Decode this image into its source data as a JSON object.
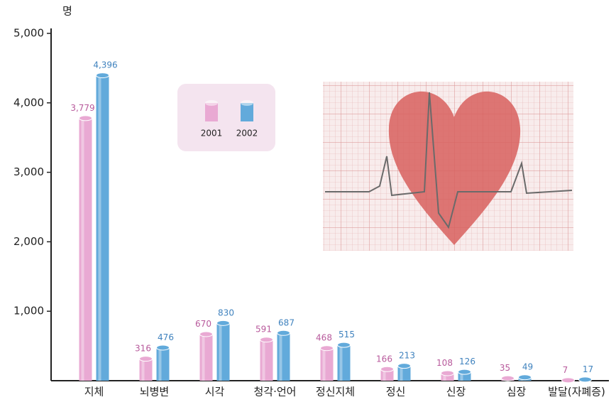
{
  "chart_data": {
    "type": "bar",
    "y_label": "명",
    "categories": [
      "지체",
      "뇌병변",
      "시각",
      "청각·언어",
      "정신지체",
      "정신",
      "신장",
      "심장",
      "발달(자폐증)"
    ],
    "series": [
      {
        "name": "2001",
        "color": "#e9a9d3",
        "label_color": "#b85a9c",
        "values": [
          3779,
          316,
          670,
          591,
          468,
          166,
          108,
          35,
          7
        ],
        "value_labels": [
          "3,779",
          "316",
          "670",
          "591",
          "468",
          "166",
          "108",
          "35",
          "7"
        ]
      },
      {
        "name": "2002",
        "color": "#62aadb",
        "label_color": "#3f82be",
        "values": [
          4396,
          476,
          830,
          687,
          515,
          213,
          126,
          49,
          17
        ],
        "value_labels": [
          "4,396",
          "476",
          "830",
          "687",
          "515",
          "213",
          "126",
          "49",
          "17"
        ]
      }
    ],
    "ylim": [
      0,
      5000
    ],
    "yticks": [
      {
        "value": 1000,
        "label": "1,000"
      },
      {
        "value": 2000,
        "label": "2,000"
      },
      {
        "value": 3000,
        "label": "3,000"
      },
      {
        "value": 4000,
        "label": "4,000"
      },
      {
        "value": 5000,
        "label": "5,000"
      }
    ],
    "grid": false
  }
}
